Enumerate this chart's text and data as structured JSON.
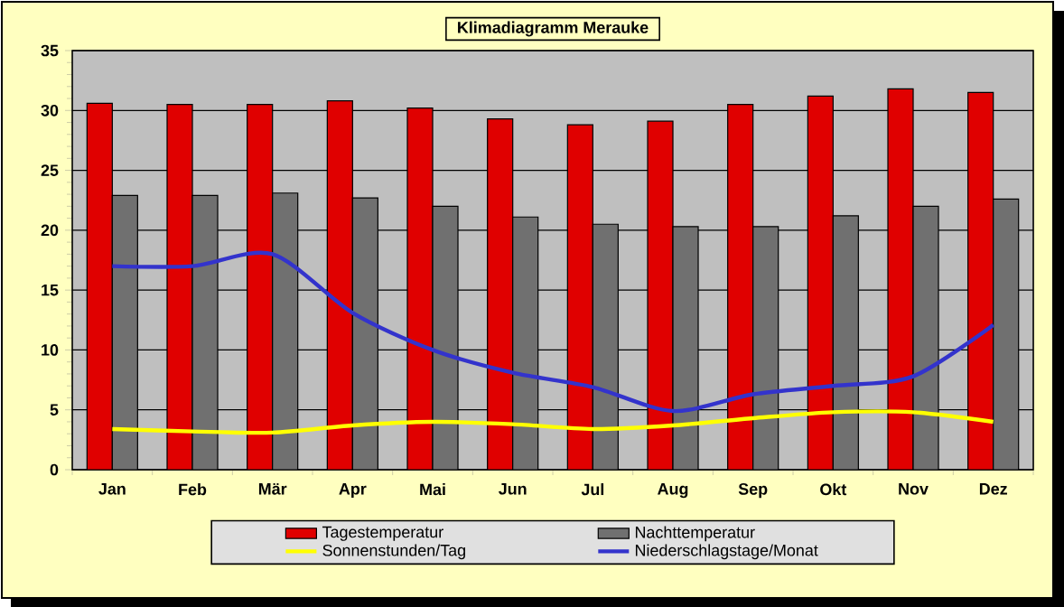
{
  "chart_data": {
    "type": "bar",
    "title": "Klimadiagramm Merauke",
    "categories": [
      "Jan",
      "Feb",
      "Mär",
      "Apr",
      "Mai",
      "Jun",
      "Jul",
      "Aug",
      "Sep",
      "Okt",
      "Nov",
      "Dez"
    ],
    "series": [
      {
        "name": "Tagestemperatur",
        "color": "#e00000",
        "values": [
          30.6,
          30.5,
          30.5,
          30.8,
          30.2,
          29.3,
          28.8,
          29.1,
          30.5,
          31.2,
          31.8,
          31.5
        ]
      },
      {
        "name": "Nachttemperatur",
        "color": "#707070",
        "values": [
          22.9,
          22.9,
          23.1,
          22.7,
          22.0,
          21.1,
          20.5,
          20.3,
          20.3,
          21.2,
          22.0,
          22.6
        ]
      },
      {
        "name": "Sonnenstunden/Tag",
        "type": "line",
        "color": "#ffff00",
        "values": [
          3.4,
          3.2,
          3.1,
          3.7,
          4.0,
          3.8,
          3.4,
          3.7,
          4.3,
          4.8,
          4.8,
          4.0
        ]
      },
      {
        "name": "Niederschlagstage/Monat",
        "type": "line",
        "color": "#3333cc",
        "values": [
          17.0,
          17.0,
          18.0,
          13.1,
          10.0,
          8.1,
          6.9,
          4.9,
          6.3,
          7.0,
          7.8,
          12.1
        ]
      }
    ],
    "ylim": [
      0,
      35
    ],
    "yticks": [
      0,
      5,
      10,
      15,
      20,
      25,
      30,
      35
    ],
    "grid": "y",
    "legend": "bottom",
    "marker": "none",
    "line_style": "solid"
  }
}
